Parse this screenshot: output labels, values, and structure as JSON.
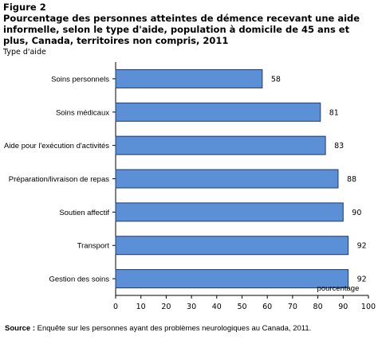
{
  "figure": {
    "number": "Figure 2",
    "title": "Pourcentage des personnes atteintes de démence recevant une aide informelle, selon le type d'aide, population à domicile de 45 ans et plus, Canada, territoires non compris, 2011"
  },
  "chart_data": {
    "type": "bar",
    "orientation": "horizontal",
    "categories": [
      "Soins personnels",
      "Soins médicaux",
      "Aide pour l'exécution d'activités",
      "Préparation/livraison de repas",
      "Soutien affectif",
      "Transport",
      "Gestion des soins"
    ],
    "values": [
      58,
      81,
      83,
      88,
      90,
      92,
      92
    ],
    "ylabel": "Type d'aide",
    "xlabel": "pourcentage",
    "xlim": [
      0,
      100
    ],
    "xticks": [
      0,
      10,
      20,
      30,
      40,
      50,
      60,
      70,
      80,
      90,
      100
    ],
    "bar_color": "#5b8fd6",
    "bar_edge": "#1f3b6e",
    "grid": false,
    "legend": "none"
  },
  "source": {
    "label": "Source :",
    "text": "Enquête sur les personnes ayant des problèmes neurologiques au Canada, 2011."
  }
}
